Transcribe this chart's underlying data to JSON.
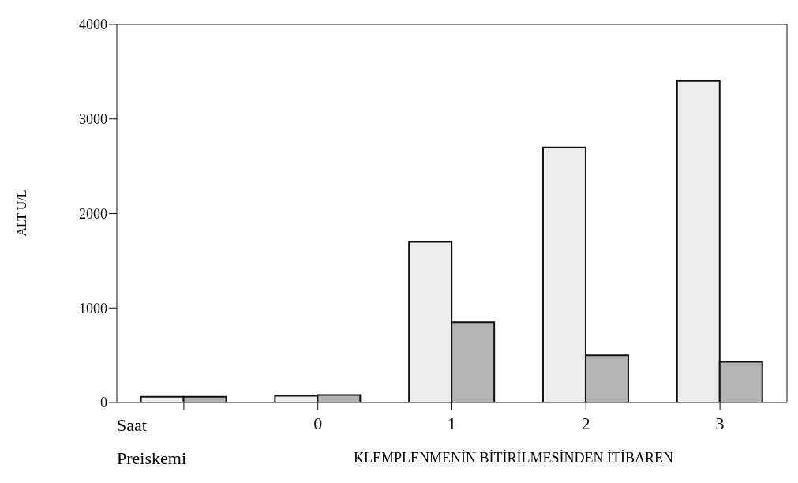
{
  "chart_data": {
    "type": "bar",
    "ylabel": "ALT U/L",
    "xlabel": "KLEMPLENMENİN BİTİRİLMESİNDEN İTİBAREN",
    "categories": [
      null,
      "0",
      "1",
      "2",
      "3"
    ],
    "series": [
      {
        "color": "#ececec",
        "values": [
          60,
          70,
          1700,
          2700,
          3400
        ]
      },
      {
        "color": "#b4b4b4",
        "values": [
          60,
          80,
          850,
          500,
          430
        ]
      }
    ],
    "ylim": [
      0,
      4000
    ],
    "yticks": [
      0,
      1000,
      2000,
      3000,
      4000
    ],
    "grid": false,
    "legend": false,
    "annotations": [
      "Saat",
      "Preiskemi"
    ]
  }
}
